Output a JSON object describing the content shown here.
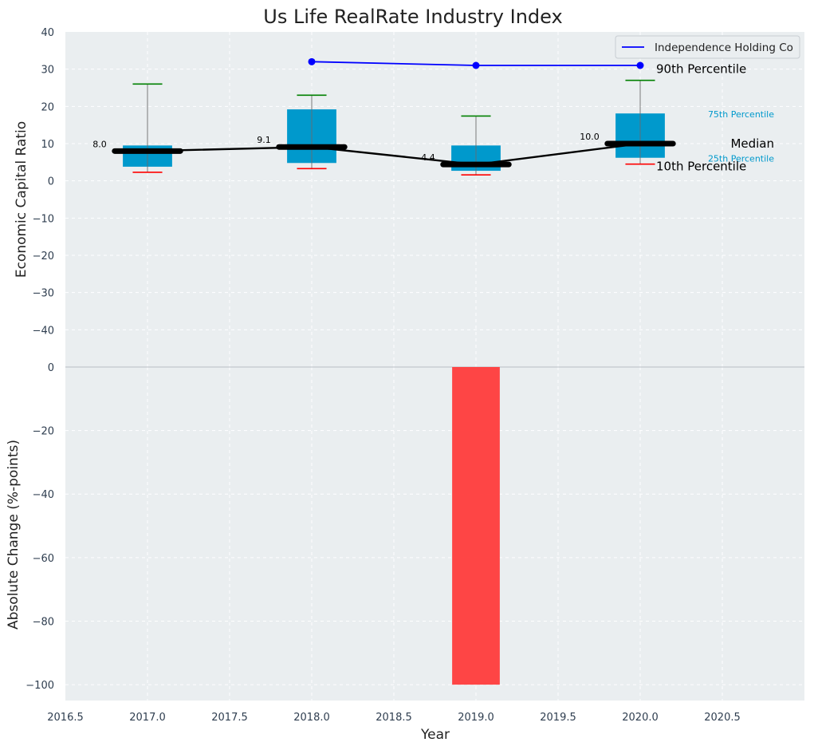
{
  "chart_data": {
    "type": "box",
    "title": "Us Life RealRate Industry Index",
    "top_panel": {
      "ylabel": "Economic Capital Ratio",
      "ylim": [
        -50,
        40
      ],
      "yticks": [
        40,
        30,
        20,
        10,
        0,
        -10,
        -20,
        -30,
        -40
      ],
      "boxes": [
        {
          "year": 2017,
          "p10": 2.3,
          "p25": 3.8,
          "median": 8.0,
          "p75": 9.5,
          "p90": 26.0,
          "median_label": "8.0"
        },
        {
          "year": 2018,
          "p10": 3.3,
          "p25": 4.8,
          "median": 9.1,
          "p75": 19.2,
          "p90": 23.0,
          "median_label": "9.1"
        },
        {
          "year": 2019,
          "p10": 1.6,
          "p25": 2.7,
          "median": 4.4,
          "p75": 9.5,
          "p90": 17.4,
          "median_label": "4.4"
        },
        {
          "year": 2020,
          "p10": 4.5,
          "p25": 6.2,
          "median": 10.0,
          "p75": 18.1,
          "p90": 27.0,
          "median_label": "10.0"
        }
      ],
      "median_line": {
        "x": [
          2017,
          2018,
          2019,
          2020
        ],
        "y": [
          8.0,
          9.1,
          4.4,
          10.0
        ]
      },
      "series": [
        {
          "name": "Independence Holding Co",
          "x": [
            2018,
            2019,
            2020
          ],
          "y": [
            32.0,
            31.0,
            31.0
          ],
          "color": "#0000ff"
        }
      ],
      "legend": {
        "label": "Independence Holding Co",
        "position": "top-right"
      },
      "annotations": {
        "p90": "90th Percentile",
        "p75": "75th Percentile",
        "median": "Median",
        "p25": "25th Percentile",
        "p10": "10th Percentile"
      }
    },
    "bottom_panel": {
      "type": "bar",
      "ylabel": "Absolute Change (%-points)",
      "ylim": [
        -105,
        0
      ],
      "yticks": [
        0,
        -20,
        -40,
        -60,
        -80,
        -100
      ],
      "bars": [
        {
          "x": 2019,
          "value": -100
        }
      ]
    },
    "x_axis": {
      "xlabel": "Year",
      "xlim": [
        2016.5,
        2021.0
      ],
      "xticks": [
        2016.5,
        2017.0,
        2017.5,
        2018.0,
        2018.5,
        2019.0,
        2019.5,
        2020.0,
        2020.5
      ],
      "tick_labels": [
        "2016.5",
        "2017.0",
        "2017.5",
        "2018.0",
        "2018.5",
        "2019.0",
        "2019.5",
        "2020.0",
        "2020.5"
      ]
    },
    "colors": {
      "background": "#eaeef0",
      "box_fill": "#0099cc",
      "whisker_top": "#008000",
      "whisker_bottom": "#ff0000",
      "median": "#000000",
      "bar": "#ff3b3b",
      "series": "#0000ff",
      "annotation_box": "#0099cc"
    }
  }
}
